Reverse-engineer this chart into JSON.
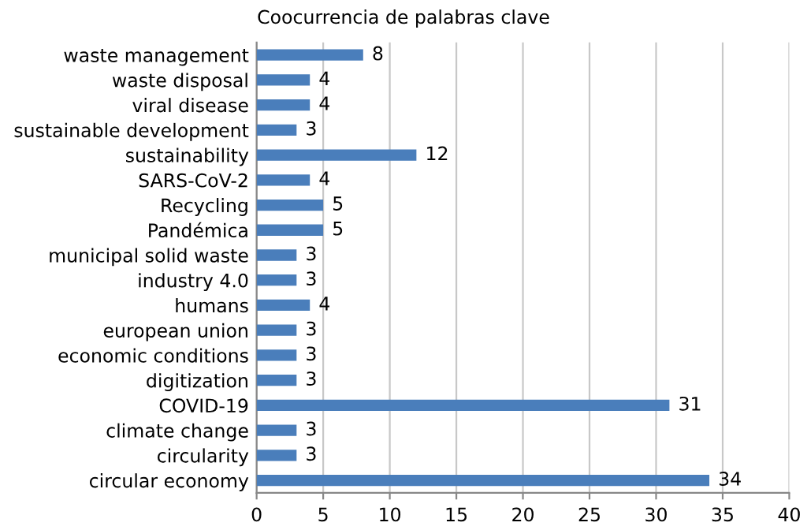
{
  "chart_data": {
    "type": "bar",
    "orientation": "horizontal",
    "title": "Coocurrencia de palabras clave",
    "categories": [
      "waste management",
      "waste disposal",
      "viral disease",
      "sustainable development",
      "sustainability",
      "SARS-CoV-2",
      "Recycling",
      "Pandémica",
      "municipal solid waste",
      "industry 4.0",
      "humans",
      "european union",
      "economic conditions",
      "digitization",
      "COVID-19",
      "climate change",
      "circularity",
      "circular economy"
    ],
    "values": [
      8,
      4,
      4,
      3,
      12,
      4,
      5,
      5,
      3,
      3,
      4,
      3,
      3,
      3,
      31,
      3,
      3,
      34
    ],
    "color": "#4a7ebb",
    "xlim": [
      0,
      40
    ],
    "xticks": [
      0,
      5,
      10,
      15,
      20,
      25,
      30,
      35,
      40
    ],
    "grid": "x",
    "data_labels": true
  }
}
